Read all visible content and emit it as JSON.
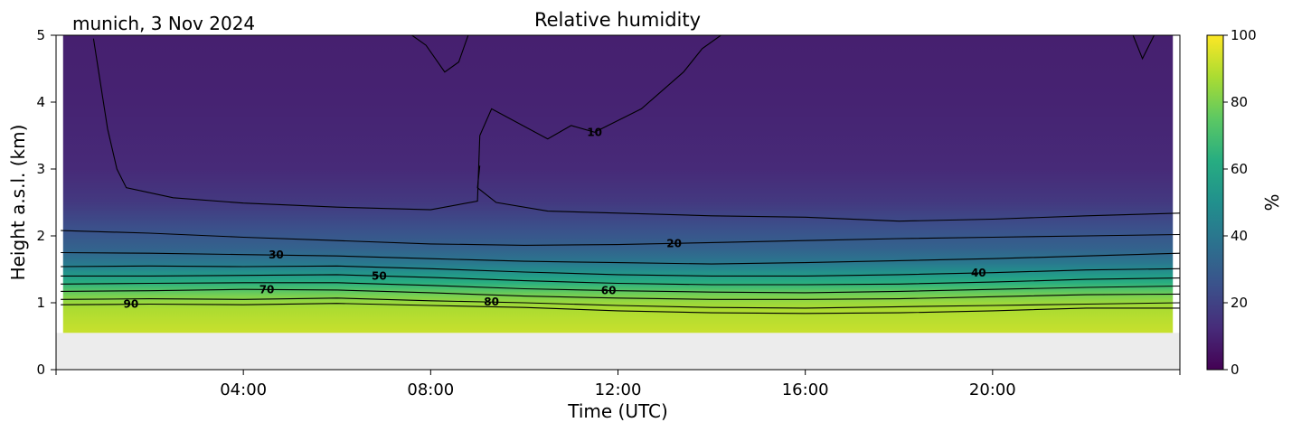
{
  "header": {
    "location_date": "munich, 3 Nov 2024",
    "title": "Relative humidity"
  },
  "chart_data": {
    "type": "heatmap",
    "title": "Relative humidity",
    "xlabel": "Time (UTC)",
    "ylabel": "Height a.s.l. (km)",
    "xlim_hours": [
      0,
      24
    ],
    "ylim": [
      0,
      5
    ],
    "x_ticks": [
      {
        "hour": 4,
        "label": "04:00"
      },
      {
        "hour": 8,
        "label": "08:00"
      },
      {
        "hour": 12,
        "label": "12:00"
      },
      {
        "hour": 16,
        "label": "16:00"
      },
      {
        "hour": 20,
        "label": "20:00"
      }
    ],
    "y_ticks": [
      0,
      1,
      2,
      3,
      4,
      5
    ],
    "colorbar": {
      "label": "%",
      "range": [
        0,
        100
      ],
      "ticks": [
        0,
        20,
        40,
        60,
        80,
        100
      ],
      "colormap": "viridis",
      "stops": [
        "#440154",
        "#472c7a",
        "#3b518b",
        "#2c718e",
        "#21908d",
        "#27ad81",
        "#5cc863",
        "#aadc32",
        "#fde725"
      ]
    },
    "no_data_below_km": 0.55,
    "no_data_color": "#ececec",
    "profile_levels": [
      {
        "height_km": 0.55,
        "rh": 92
      },
      {
        "height_km": 0.9,
        "rh": 88
      },
      {
        "height_km": 1.0,
        "rh": 85
      },
      {
        "height_km": 1.1,
        "rh": 80
      },
      {
        "height_km": 1.2,
        "rh": 72
      },
      {
        "height_km": 1.3,
        "rh": 63
      },
      {
        "height_km": 1.4,
        "rh": 55
      },
      {
        "height_km": 1.5,
        "rh": 47
      },
      {
        "height_km": 1.6,
        "rh": 40
      },
      {
        "height_km": 1.8,
        "rh": 32
      },
      {
        "height_km": 2.1,
        "rh": 25
      },
      {
        "height_km": 2.5,
        "rh": 17
      },
      {
        "height_km": 3.0,
        "rh": 12
      },
      {
        "height_km": 4.0,
        "rh": 10
      },
      {
        "height_km": 5.0,
        "rh": 9
      }
    ],
    "contours": [
      {
        "level": 90,
        "label": "90",
        "label_at_hour": 1.6,
        "points": [
          [
            0.1,
            0.97
          ],
          [
            2,
            0.98
          ],
          [
            4,
            0.97
          ],
          [
            6,
            0.99
          ],
          [
            8,
            0.96
          ],
          [
            10,
            0.93
          ],
          [
            12,
            0.88
          ],
          [
            14,
            0.85
          ],
          [
            16,
            0.84
          ],
          [
            18,
            0.85
          ],
          [
            20,
            0.88
          ],
          [
            22,
            0.92
          ],
          [
            24,
            0.92
          ]
        ]
      },
      {
        "level": 80,
        "label": "80",
        "label_at_hour": 9.3,
        "points": [
          [
            0.1,
            1.05
          ],
          [
            2,
            1.06
          ],
          [
            4,
            1.05
          ],
          [
            6,
            1.07
          ],
          [
            8,
            1.03
          ],
          [
            10,
            1.0
          ],
          [
            12,
            0.96
          ],
          [
            14,
            0.93
          ],
          [
            16,
            0.92
          ],
          [
            18,
            0.94
          ],
          [
            20,
            0.96
          ],
          [
            22,
            0.98
          ],
          [
            24,
            1.0
          ]
        ]
      },
      {
        "level": 70,
        "label": "70",
        "label_at_hour": 4.5,
        "points": [
          [
            0.1,
            1.17
          ],
          [
            2,
            1.18
          ],
          [
            4,
            1.2
          ],
          [
            6,
            1.19
          ],
          [
            8,
            1.15
          ],
          [
            10,
            1.1
          ],
          [
            12,
            1.07
          ],
          [
            14,
            1.05
          ],
          [
            16,
            1.05
          ],
          [
            18,
            1.06
          ],
          [
            20,
            1.09
          ],
          [
            22,
            1.12
          ],
          [
            24,
            1.13
          ]
        ]
      },
      {
        "level": 60,
        "label": "60",
        "label_at_hour": 11.8,
        "points": [
          [
            0.1,
            1.28
          ],
          [
            2,
            1.29
          ],
          [
            4,
            1.3
          ],
          [
            6,
            1.3
          ],
          [
            8,
            1.26
          ],
          [
            10,
            1.21
          ],
          [
            12,
            1.18
          ],
          [
            14,
            1.16
          ],
          [
            16,
            1.15
          ],
          [
            18,
            1.17
          ],
          [
            20,
            1.2
          ],
          [
            22,
            1.23
          ],
          [
            24,
            1.25
          ]
        ]
      },
      {
        "level": 50,
        "label": "50",
        "label_at_hour": 6.9,
        "points": [
          [
            0.1,
            1.4
          ],
          [
            2,
            1.4
          ],
          [
            4,
            1.41
          ],
          [
            6,
            1.42
          ],
          [
            8,
            1.38
          ],
          [
            10,
            1.33
          ],
          [
            12,
            1.29
          ],
          [
            14,
            1.27
          ],
          [
            16,
            1.27
          ],
          [
            18,
            1.28
          ],
          [
            20,
            1.31
          ],
          [
            22,
            1.35
          ],
          [
            24,
            1.37
          ]
        ]
      },
      {
        "level": 40,
        "label": "40",
        "label_at_hour": 19.7,
        "points": [
          [
            0.1,
            1.54
          ],
          [
            2,
            1.55
          ],
          [
            4,
            1.54
          ],
          [
            6,
            1.55
          ],
          [
            8,
            1.51
          ],
          [
            10,
            1.46
          ],
          [
            12,
            1.42
          ],
          [
            14,
            1.4
          ],
          [
            16,
            1.4
          ],
          [
            18,
            1.42
          ],
          [
            20,
            1.45
          ],
          [
            22,
            1.49
          ],
          [
            24,
            1.51
          ]
        ]
      },
      {
        "level": 30,
        "label": "30",
        "label_at_hour": 4.7,
        "points": [
          [
            0.1,
            1.75
          ],
          [
            2,
            1.74
          ],
          [
            4,
            1.72
          ],
          [
            6,
            1.7
          ],
          [
            8,
            1.66
          ],
          [
            10,
            1.62
          ],
          [
            12,
            1.6
          ],
          [
            14,
            1.58
          ],
          [
            16,
            1.6
          ],
          [
            18,
            1.63
          ],
          [
            20,
            1.66
          ],
          [
            22,
            1.7
          ],
          [
            24,
            1.74
          ]
        ]
      },
      {
        "level": 20,
        "label": "20",
        "label_at_hour": 13.2,
        "points": [
          [
            0.1,
            2.08
          ],
          [
            2,
            2.04
          ],
          [
            4,
            1.98
          ],
          [
            6,
            1.93
          ],
          [
            8,
            1.88
          ],
          [
            10,
            1.86
          ],
          [
            12,
            1.87
          ],
          [
            14,
            1.9
          ],
          [
            16,
            1.93
          ],
          [
            18,
            1.96
          ],
          [
            20,
            1.98
          ],
          [
            22,
            2.0
          ],
          [
            24,
            2.02
          ]
        ]
      },
      {
        "level": 10,
        "label": "10",
        "label_at_hour": 11.5,
        "points": [
          [
            0.8,
            4.95
          ],
          [
            1.1,
            3.6
          ],
          [
            1.3,
            3.0
          ],
          [
            1.5,
            2.72
          ],
          [
            2.5,
            2.57
          ],
          [
            4,
            2.49
          ],
          [
            6,
            2.43
          ],
          [
            8,
            2.39
          ],
          [
            9.0,
            2.52
          ],
          [
            9.05,
            3.5
          ],
          [
            9.3,
            3.9
          ],
          [
            10.5,
            3.45
          ],
          [
            11.0,
            3.65
          ],
          [
            11.5,
            3.55
          ],
          [
            12.5,
            3.9
          ],
          [
            13.4,
            4.45
          ],
          [
            13.8,
            4.8
          ],
          [
            14.2,
            5.0
          ]
        ]
      },
      {
        "level": 10,
        "label": "",
        "label_at_hour": 0,
        "points": [
          [
            9.05,
            3.05
          ],
          [
            9.0,
            2.72
          ],
          [
            9.4,
            2.5
          ],
          [
            10.5,
            2.37
          ],
          [
            12,
            2.34
          ],
          [
            14,
            2.3
          ],
          [
            16,
            2.28
          ],
          [
            18,
            2.22
          ],
          [
            20,
            2.25
          ],
          [
            22,
            2.3
          ],
          [
            24,
            2.34
          ]
        ]
      },
      {
        "level": 10,
        "label": "",
        "label_at_hour": 0,
        "points": [
          [
            7.6,
            5.0
          ],
          [
            7.9,
            4.85
          ],
          [
            8.3,
            4.45
          ],
          [
            8.6,
            4.6
          ],
          [
            8.8,
            5.0
          ]
        ]
      },
      {
        "level": 10,
        "label": "",
        "label_at_hour": 0,
        "points": [
          [
            23.0,
            5.0
          ],
          [
            23.2,
            4.65
          ],
          [
            23.45,
            5.0
          ]
        ]
      }
    ]
  }
}
